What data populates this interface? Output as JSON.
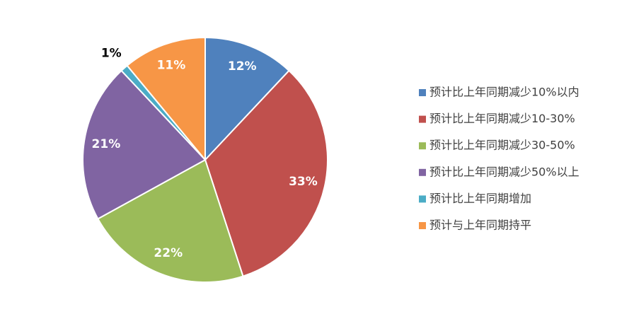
{
  "chart_data": {
    "type": "pie",
    "categories": [
      "预计比上年同期减少10%以内",
      "预计比上年同期减少10-30%",
      "预计比上年同期减少30-50%",
      "预计比上年同期减少50%以上",
      "预计比上年同期增加",
      "预计与上年同期持平"
    ],
    "values": [
      12,
      33,
      22,
      21,
      1,
      11
    ],
    "value_labels": [
      "12%",
      "33%",
      "22%",
      "21%",
      "1%",
      "11%"
    ],
    "colors": [
      "#4f81bd",
      "#c0504d",
      "#9bbb59",
      "#8064a2",
      "#4bacc6",
      "#f79646"
    ],
    "legend": "right"
  }
}
